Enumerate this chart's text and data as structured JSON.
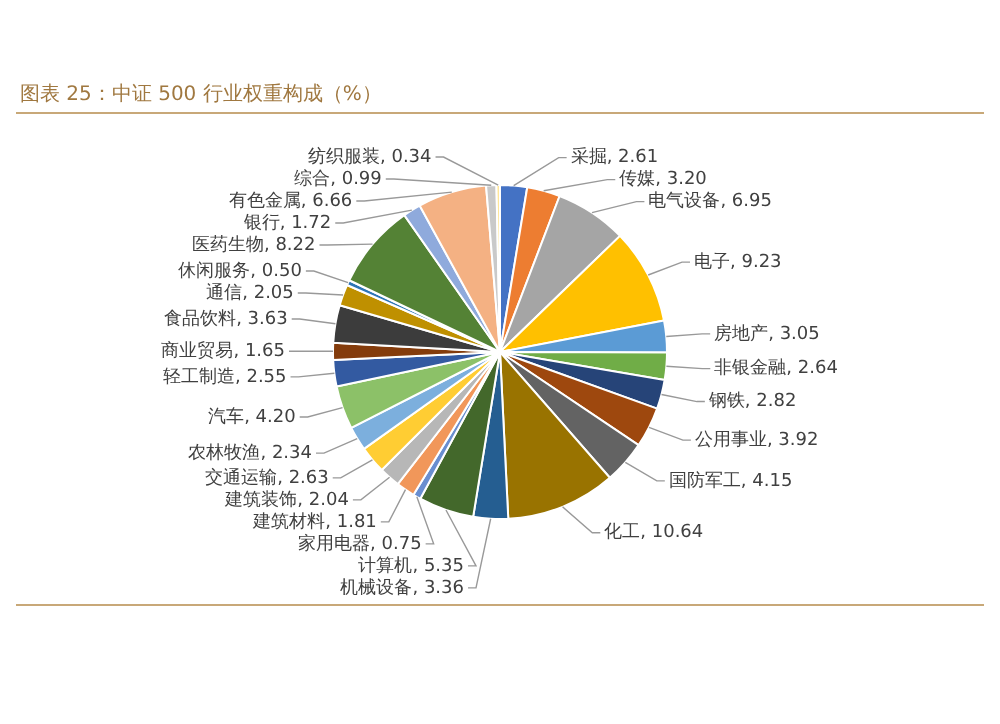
{
  "chart_data": {
    "type": "pie",
    "title": "图表 25：中证 500 行业权重构成（%）",
    "categories": [
      "采掘",
      "传媒",
      "电气设备",
      "电子",
      "房地产",
      "非银金融",
      "钢铁",
      "公用事业",
      "国防军工",
      "化工",
      "机械设备",
      "计算机",
      "家用电器",
      "建筑材料",
      "建筑装饰",
      "交通运输",
      "农林牧渔",
      "汽车",
      "轻工制造",
      "商业贸易",
      "食品饮料",
      "通信",
      "休闲服务",
      "医药生物",
      "银行",
      "有色金属",
      "综合",
      "纺织服装"
    ],
    "values": [
      2.61,
      3.2,
      6.95,
      9.23,
      3.05,
      2.64,
      2.82,
      3.92,
      4.15,
      10.64,
      3.36,
      5.35,
      0.75,
      1.81,
      2.04,
      2.63,
      2.34,
      4.2,
      2.55,
      1.65,
      3.63,
      2.05,
      0.5,
      8.22,
      1.72,
      6.66,
      0.99,
      0.34
    ],
    "value_labels": [
      "2.61",
      "3.20",
      "6.95",
      "9.23",
      "3.05",
      "2.64",
      "2.82",
      "3.92",
      "4.15",
      "10.64",
      "3.36",
      "5.35",
      "0.75",
      "1.81",
      "2.04",
      "2.63",
      "2.34",
      "4.20",
      "2.55",
      "1.65",
      "3.63",
      "2.05",
      "0.50",
      "8.22",
      "1.72",
      "6.66",
      "0.99",
      "0.34"
    ],
    "colors": [
      "#4472c4",
      "#ed7d31",
      "#a5a5a5",
      "#ffc000",
      "#5b9bd5",
      "#70ad47",
      "#264478",
      "#9e480e",
      "#636363",
      "#997300",
      "#255e91",
      "#43682b",
      "#698ed0",
      "#f1975a",
      "#b7b7b7",
      "#ffcd33",
      "#7cafdd",
      "#8cc168",
      "#335aa1",
      "#843c0c",
      "#3c3c3c",
      "#bf9000",
      "#2e75b6",
      "#548235",
      "#8faadc",
      "#f4b183",
      "#c9c9c9",
      "#ffe699"
    ]
  }
}
